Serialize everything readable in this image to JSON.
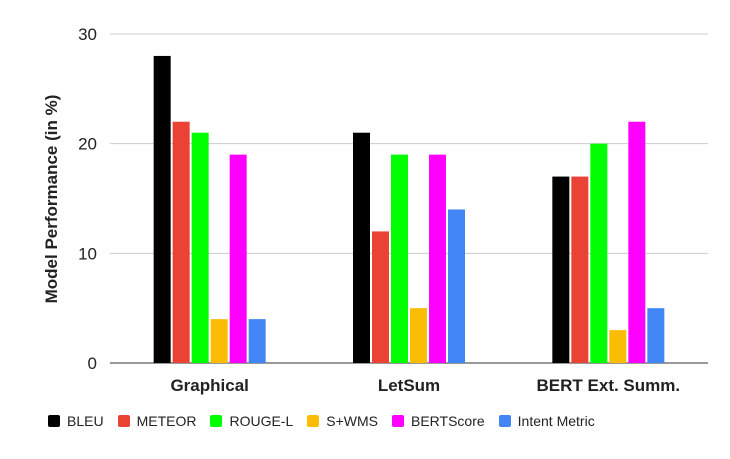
{
  "chart_data": {
    "type": "bar",
    "title": "",
    "xlabel": "",
    "ylabel": "Model Performance (in %)",
    "ylim": [
      0,
      30
    ],
    "yticks": [
      0,
      10,
      20,
      30
    ],
    "grid": true,
    "legend_position": "bottom",
    "categories": [
      "Graphical",
      "LetSum",
      "BERT Ext. Summ."
    ],
    "series": [
      {
        "name": "BLEU",
        "color": "#000000",
        "values": [
          28,
          21,
          17
        ]
      },
      {
        "name": "METEOR",
        "color": "#ea4335",
        "values": [
          22,
          12,
          17
        ]
      },
      {
        "name": "ROUGE-L",
        "color": "#00ff00",
        "values": [
          21,
          19,
          20
        ]
      },
      {
        "name": "S+WMS",
        "color": "#fbbc04",
        "values": [
          4,
          5,
          3
        ]
      },
      {
        "name": "BERTScore",
        "color": "#ff00ff",
        "values": [
          19,
          19,
          22
        ]
      },
      {
        "name": "Intent Metric",
        "color": "#4285f4",
        "values": [
          4,
          14,
          5
        ]
      }
    ]
  }
}
